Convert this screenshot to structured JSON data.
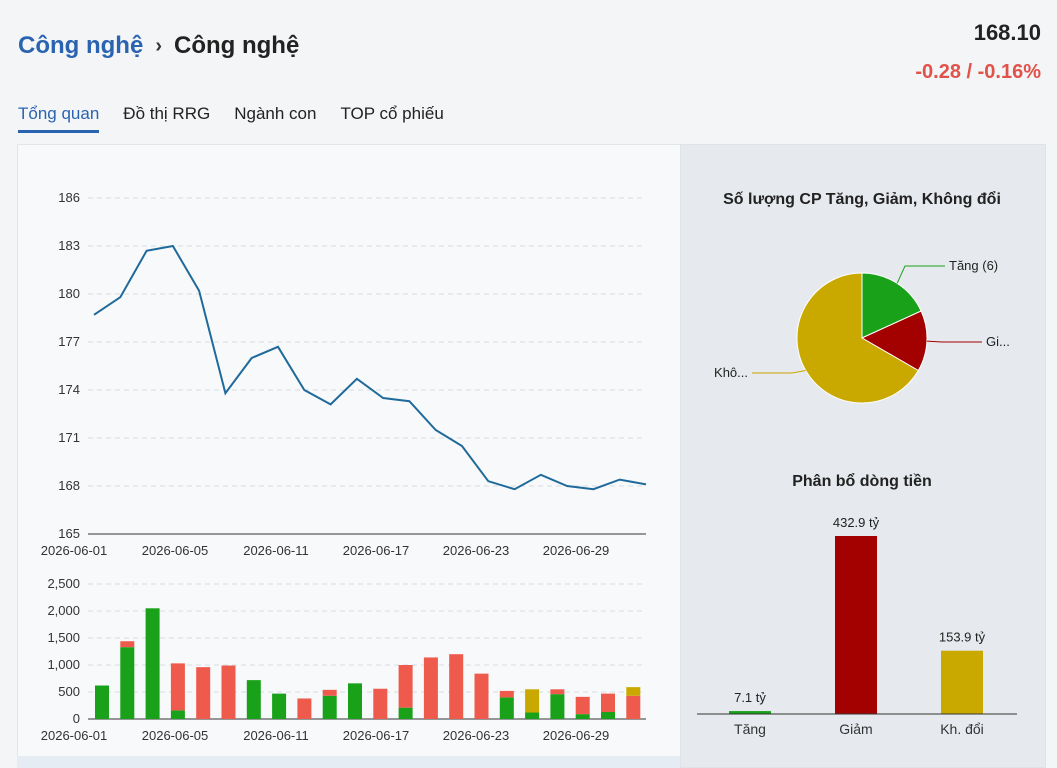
{
  "header": {
    "breadcrumb_parent": "Công nghệ",
    "breadcrumb_separator": "›",
    "breadcrumb_current": "Công nghệ",
    "price": "168.10",
    "change": "-0.28 / -0.16%"
  },
  "tabs": [
    {
      "label": "Tổng quan",
      "active": true
    },
    {
      "label": "Đồ thị RRG",
      "active": false
    },
    {
      "label": "Ngành con",
      "active": false
    },
    {
      "label": "TOP cổ phiếu",
      "active": false
    }
  ],
  "colors": {
    "accent": "#2a64b0",
    "negative": "#e0524a",
    "line": "#1f6a9a",
    "up": "#1aa11a",
    "down": "#a30000",
    "unchanged": "#c9a800",
    "bar_down": "#ee5a4c"
  },
  "chart_data": [
    {
      "type": "line",
      "ylim": [
        165,
        186
      ],
      "yticks": [
        165,
        168,
        171,
        174,
        177,
        180,
        183,
        186
      ],
      "xtick_labels": [
        "2026-06-01",
        "2026-06-05",
        "2026-06-11",
        "2026-06-17",
        "2026-06-23",
        "2026-06-29"
      ],
      "values": [
        178.7,
        179.8,
        182.7,
        183.0,
        180.2,
        173.8,
        176.0,
        176.7,
        174.0,
        173.1,
        174.7,
        173.5,
        173.3,
        171.5,
        170.5,
        168.3,
        167.8,
        168.7,
        168.0,
        167.8,
        168.4,
        168.1
      ]
    },
    {
      "type": "bar",
      "stacked": true,
      "ylim": [
        0,
        2500
      ],
      "ytick_labels": [
        "0",
        "500",
        "1,000",
        "1,500",
        "2,000",
        "2,500"
      ],
      "yticks": [
        0,
        500,
        1000,
        1500,
        2000,
        2500
      ],
      "xtick_labels": [
        "2026-06-01",
        "2026-06-05",
        "2026-06-11",
        "2026-06-17",
        "2026-06-23",
        "2026-06-29"
      ],
      "series": [
        {
          "key": "up",
          "values": [
            620,
            1330,
            2050,
            160,
            0,
            0,
            720,
            470,
            0,
            430,
            660,
            0,
            210,
            0,
            0,
            0,
            400,
            120,
            460,
            90,
            130,
            0
          ]
        },
        {
          "key": "down",
          "values": [
            0,
            110,
            0,
            870,
            960,
            990,
            0,
            0,
            380,
            110,
            0,
            560,
            790,
            1140,
            1200,
            840,
            120,
            0,
            90,
            320,
            340,
            430
          ]
        },
        {
          "key": "unchanged",
          "values": [
            0,
            0,
            0,
            0,
            0,
            0,
            0,
            0,
            0,
            0,
            0,
            0,
            0,
            0,
            0,
            0,
            0,
            430,
            0,
            0,
            0,
            160
          ]
        }
      ]
    },
    {
      "type": "pie",
      "title": "Số lượng CP Tăng, Giảm, Không đổi",
      "slices": [
        {
          "label": "Tăng (6)",
          "value": 6,
          "color": "#1aa11a"
        },
        {
          "label": "Gi...",
          "value": 5,
          "color": "#a30000"
        },
        {
          "label": "Khô...",
          "value": 22,
          "color": "#c9a800"
        }
      ]
    },
    {
      "type": "bar",
      "title": "Phân bổ dòng tiền",
      "categories": [
        "Tăng",
        "Giảm",
        "Kh. đổi"
      ],
      "values": [
        7.1,
        432.9,
        153.9
      ],
      "value_labels": [
        "7.1 tỷ",
        "432.9 tỷ",
        "153.9 tỷ"
      ],
      "colors": [
        "#1aa11a",
        "#a30000",
        "#c9a800"
      ]
    }
  ]
}
